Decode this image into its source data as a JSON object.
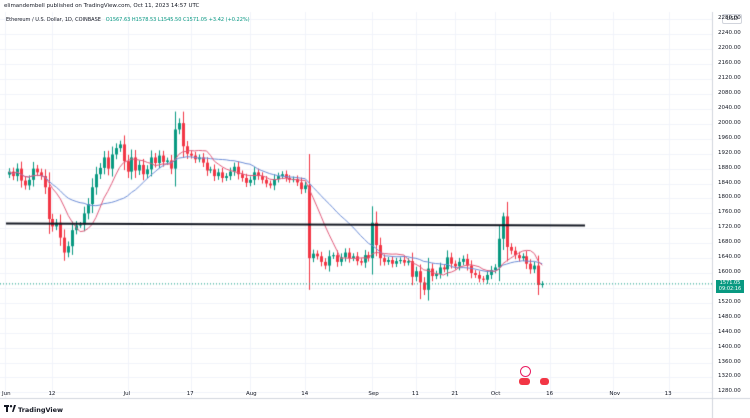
{
  "header": {
    "published_line": "elimandembell published on TradingView.com, Oct 11, 2023 14:57 UTC",
    "symbol": "Ethereum / U.S. Dollar, 1D, COINBASE",
    "ohlc": "O1567.63  H1578.53  L1545.50  C1571.05  +3.42 (+0.22%)"
  },
  "currency_badge": "USD",
  "last_price": {
    "value": "1571.05",
    "countdown": "09:02:16"
  },
  "footer": {
    "brand": "TradingView"
  },
  "colors": {
    "up": "#089981",
    "down": "#f23645",
    "ma_fast": "#e05a7a",
    "ma_slow": "#6b8cd6",
    "resistance": "#131722",
    "grid": "#f0f3fa"
  },
  "chart_data": {
    "type": "candlestick",
    "title": "Ethereum / U.S. Dollar, 1D, COINBASE",
    "y_axis": {
      "ylim": [
        1265,
        2300
      ],
      "tick_labels": [
        "2280.00",
        "2240.00",
        "2200.00",
        "2160.00",
        "2120.00",
        "2080.00",
        "2040.00",
        "2000.00",
        "1960.00",
        "1920.00",
        "1880.00",
        "1840.00",
        "1800.00",
        "1760.00",
        "1720.00",
        "1680.00",
        "1640.00",
        "1600.00",
        "1560.00",
        "1520.00",
        "1480.00",
        "1440.00",
        "1400.00",
        "1360.00",
        "1320.00",
        "1280.00"
      ]
    },
    "x_axis": {
      "tick_labels": [
        "Jun",
        "12",
        "Jul",
        "17",
        "Aug",
        "14",
        "Sep",
        "11",
        "21",
        "Oct",
        "16",
        "Nov",
        "13"
      ],
      "tick_day_index": [
        -1,
        11,
        30,
        46,
        61,
        75,
        92,
        103,
        113,
        123,
        137,
        153,
        167
      ]
    },
    "resistance_level": 1730,
    "closes": [
      1872,
      1860,
      1880,
      1848,
      1835,
      1850,
      1880,
      1870,
      1860,
      1830,
      1745,
      1725,
      1735,
      1695,
      1655,
      1672,
      1715,
      1728,
      1730,
      1760,
      1785,
      1830,
      1865,
      1882,
      1910,
      1880,
      1918,
      1935,
      1945,
      1900,
      1872,
      1910,
      1875,
      1890,
      1865,
      1878,
      1910,
      1895,
      1915,
      1898,
      1902,
      1880,
      1985,
      2002,
      1940,
      1920,
      1915,
      1905,
      1910,
      1896,
      1875,
      1878,
      1860,
      1870,
      1855,
      1860,
      1872,
      1885,
      1865,
      1855,
      1842,
      1850,
      1870,
      1860,
      1850,
      1840,
      1835,
      1852,
      1860,
      1865,
      1855,
      1850,
      1852,
      1843,
      1825,
      1835,
      1640,
      1652,
      1645,
      1630,
      1620,
      1645,
      1648,
      1630,
      1642,
      1655,
      1640,
      1645,
      1632,
      1628,
      1648,
      1640,
      1735,
      1675,
      1640,
      1630,
      1635,
      1625,
      1632,
      1635,
      1628,
      1632,
      1590,
      1605,
      1575,
      1555,
      1612,
      1592,
      1598,
      1615,
      1610,
      1642,
      1625,
      1618,
      1630,
      1638,
      1620,
      1600,
      1595,
      1585,
      1582,
      1595,
      1608,
      1615,
      1692,
      1752,
      1670,
      1660,
      1648,
      1640,
      1645,
      1625,
      1610,
      1620,
      1568,
      1571
    ]
  }
}
